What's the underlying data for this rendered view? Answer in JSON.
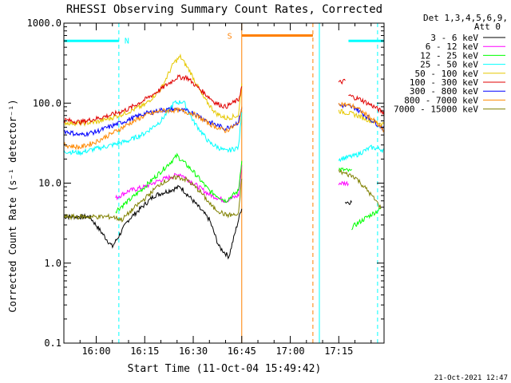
{
  "chart_data": {
    "type": "line",
    "title": "RHESSI Observing Summary Count Rates, Corrected",
    "xlabel": "Start Time (11-Oct-04 15:49:42)",
    "ylabel": "Corrected Count Rate (s⁻¹ detector⁻¹)",
    "x_unit": "minutes of day",
    "xlim": [
      950,
      1049
    ],
    "ylim": [
      0.1,
      1000
    ],
    "yscale": "log",
    "y_ticks": [
      {
        "v": 0.1,
        "label": "0.1"
      },
      {
        "v": 1,
        "label": "1.0"
      },
      {
        "v": 10,
        "label": "10.0"
      },
      {
        "v": 100,
        "label": "100.0"
      },
      {
        "v": 1000,
        "label": "1000.0"
      }
    ],
    "x_ticks": [
      {
        "v": 960,
        "label": "16:00"
      },
      {
        "v": 975,
        "label": "16:15"
      },
      {
        "v": 990,
        "label": "16:30"
      },
      {
        "v": 1005,
        "label": "16:45"
      },
      {
        "v": 1020,
        "label": "17:00"
      },
      {
        "v": 1035,
        "label": "17:15"
      }
    ],
    "legend_header": [
      "Det 1,3,4,5,6,9,",
      "Att 0"
    ],
    "legend_position": "top-right outside",
    "series": [
      {
        "name": "3 - 6 keV",
        "color": "#000000",
        "segs": [
          [
            [
              950,
              3.8
            ],
            [
              958,
              3.8
            ],
            [
              965,
              1.6
            ],
            [
              970,
              3.5
            ],
            [
              978,
              7
            ],
            [
              986,
              9
            ],
            [
              990,
              6
            ],
            [
              995,
              3.5
            ],
            [
              998,
              1.6
            ],
            [
              1001,
              1.2
            ],
            [
              1005,
              5
            ]
          ],
          [
            [
              1037,
              5.8
            ],
            [
              1039,
              5.8
            ]
          ]
        ]
      },
      {
        "name": "6 - 12 keV",
        "color": "#ff00ff",
        "segs": [
          [
            [
              966,
              6.5
            ],
            [
              970,
              8
            ],
            [
              975,
              9
            ],
            [
              980,
              11
            ],
            [
              986,
              13
            ],
            [
              990,
              10
            ],
            [
              995,
              7.2
            ],
            [
              1000,
              6
            ],
            [
              1004,
              7
            ],
            [
              1005,
              16
            ]
          ],
          [
            [
              1035,
              10
            ],
            [
              1038,
              10
            ]
          ]
        ]
      },
      {
        "name": "12 - 25 keV",
        "color": "#00ff00",
        "segs": [
          [
            [
              966,
              4.5
            ],
            [
              970,
              6
            ],
            [
              975,
              9
            ],
            [
              980,
              14
            ],
            [
              985,
              22
            ],
            [
              990,
              14
            ],
            [
              995,
              8
            ],
            [
              1000,
              6
            ],
            [
              1004,
              8
            ],
            [
              1005,
              20
            ]
          ],
          [
            [
              1035,
              15
            ],
            [
              1039,
              14
            ]
          ],
          [
            [
              1039,
              2.8
            ],
            [
              1043,
              3.6
            ],
            [
              1048,
              4.8
            ]
          ]
        ]
      },
      {
        "name": "25 - 50 keV",
        "color": "#00ffff",
        "segs": [
          [
            [
              950,
              25
            ],
            [
              955,
              24
            ],
            [
              960,
              27
            ],
            [
              965,
              30
            ],
            [
              970,
              34
            ],
            [
              975,
              42
            ],
            [
              980,
              60
            ],
            [
              984,
              100
            ],
            [
              987,
              105
            ],
            [
              990,
              60
            ],
            [
              995,
              32
            ],
            [
              1000,
              25
            ],
            [
              1004,
              28
            ],
            [
              1005,
              80
            ]
          ],
          [
            [
              1035,
              20
            ],
            [
              1040,
              22
            ],
            [
              1045,
              28
            ],
            [
              1049,
              26
            ]
          ]
        ]
      },
      {
        "name": "50 - 100 keV",
        "color": "#e6c800",
        "segs": [
          [
            [
              950,
              57
            ],
            [
              955,
              56
            ],
            [
              960,
              58
            ],
            [
              965,
              66
            ],
            [
              970,
              78
            ],
            [
              975,
              95
            ],
            [
              980,
              150
            ],
            [
              984,
              320
            ],
            [
              986,
              380
            ],
            [
              989,
              250
            ],
            [
              993,
              120
            ],
            [
              997,
              75
            ],
            [
              1000,
              65
            ],
            [
              1004,
              70
            ],
            [
              1005,
              180
            ]
          ],
          [
            [
              1035,
              80
            ],
            [
              1040,
              72
            ],
            [
              1045,
              60
            ],
            [
              1049,
              55
            ]
          ]
        ]
      },
      {
        "name": "100 - 300 keV",
        "color": "#e00000",
        "segs": [
          [
            [
              950,
              62
            ],
            [
              955,
              58
            ],
            [
              960,
              64
            ],
            [
              965,
              72
            ],
            [
              970,
              85
            ],
            [
              975,
              110
            ],
            [
              980,
              150
            ],
            [
              985,
              210
            ],
            [
              988,
              210
            ],
            [
              992,
              150
            ],
            [
              997,
              100
            ],
            [
              1000,
              90
            ],
            [
              1004,
              110
            ],
            [
              1005,
              160
            ]
          ],
          [
            [
              1035,
              180
            ],
            [
              1037,
              190
            ]
          ],
          [
            [
              1038,
              125
            ],
            [
              1042,
              110
            ],
            [
              1046,
              90
            ],
            [
              1049,
              75
            ]
          ]
        ]
      },
      {
        "name": "300 - 800 keV",
        "color": "#0000ff",
        "segs": [
          [
            [
              950,
              45
            ],
            [
              955,
              40
            ],
            [
              960,
              44
            ],
            [
              965,
              52
            ],
            [
              970,
              62
            ],
            [
              975,
              74
            ],
            [
              980,
              82
            ],
            [
              985,
              84
            ],
            [
              990,
              76
            ],
            [
              995,
              58
            ],
            [
              1000,
              48
            ],
            [
              1004,
              58
            ],
            [
              1005,
              90
            ]
          ],
          [
            [
              1035,
              95
            ],
            [
              1040,
              88
            ],
            [
              1045,
              62
            ],
            [
              1049,
              48
            ]
          ]
        ]
      },
      {
        "name": "800 - 7000 keV",
        "color": "#ff8800",
        "segs": [
          [
            [
              950,
              30
            ],
            [
              955,
              28
            ],
            [
              960,
              33
            ],
            [
              965,
              42
            ],
            [
              970,
              55
            ],
            [
              975,
              70
            ],
            [
              980,
              80
            ],
            [
              985,
              82
            ],
            [
              990,
              74
            ],
            [
              995,
              55
            ],
            [
              1000,
              45
            ],
            [
              1004,
              55
            ],
            [
              1005,
              85
            ]
          ],
          [
            [
              1035,
              100
            ],
            [
              1040,
              90
            ],
            [
              1045,
              65
            ],
            [
              1049,
              45
            ]
          ]
        ]
      },
      {
        "name": "7000 - 15000 keV",
        "color": "#808000",
        "segs": [
          [
            [
              950,
              3.8
            ],
            [
              955,
              3.8
            ],
            [
              960,
              3.8
            ],
            [
              965,
              3.8
            ],
            [
              968,
              3.5
            ],
            [
              972,
              5
            ],
            [
              976,
              7
            ],
            [
              980,
              10
            ],
            [
              985,
              12
            ],
            [
              988,
              11
            ],
            [
              992,
              8
            ],
            [
              996,
              5
            ],
            [
              1000,
              4
            ],
            [
              1004,
              4
            ],
            [
              1005,
              12
            ]
          ],
          [
            [
              1035,
              14
            ],
            [
              1040,
              12
            ],
            [
              1044,
              8
            ],
            [
              1048,
              5
            ]
          ]
        ]
      }
    ],
    "bars": [
      {
        "letter": "N",
        "color": "#00ffff",
        "y": 600,
        "x0": 950,
        "x1": 967,
        "x_end": 1049
      }
    ],
    "bar_segments": [
      {
        "color": "#00ffff",
        "y": 600,
        "x0": 950,
        "x1": 967
      },
      {
        "color": "#00ffff",
        "y": 600,
        "x0": 1038,
        "x1": 1049
      },
      {
        "color": "#ff8000",
        "y": 700,
        "x0": 1005,
        "x1": 1027
      }
    ],
    "bar_labels": [
      {
        "text": "N",
        "color": "#00ffff",
        "x": 968,
        "y": 610
      },
      {
        "text": "S",
        "color": "#ff8000",
        "x": 1003,
        "y": 700
      }
    ],
    "vlines": [
      {
        "x": 950,
        "color": "#00ffff",
        "dash": false
      },
      {
        "x": 967,
        "color": "#00ffff",
        "dash": true
      },
      {
        "x": 1005,
        "color": "#ff8000",
        "dash": false
      },
      {
        "x": 1027,
        "color": "#ff8000",
        "dash": true
      },
      {
        "x": 1029,
        "color": "#00ffff",
        "dash": false
      },
      {
        "x": 1047,
        "color": "#00ffff",
        "dash": true
      }
    ],
    "grid": false
  },
  "footer": {
    "date": "21-Oct-2021 12:47"
  }
}
